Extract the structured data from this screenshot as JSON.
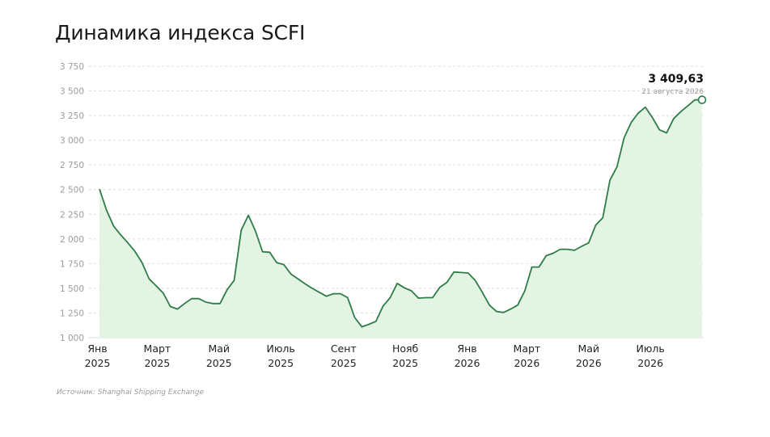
{
  "page": {
    "title": "Динамика индекса SCFI",
    "source": "Источник: Shanghai Shipping Exchange"
  },
  "chart_data": {
    "type": "area",
    "title": "Динамика индекса SCFI",
    "xlabel": "",
    "ylabel": "",
    "ylim": [
      1000,
      3750
    ],
    "yticks": [
      1000,
      1250,
      1500,
      1750,
      2000,
      2250,
      2500,
      2750,
      3000,
      3250,
      3500,
      3750
    ],
    "ytick_labels": [
      "1 000",
      "1 250",
      "1 500",
      "1 750",
      "2 000",
      "2 250",
      "2 500",
      "2 750",
      "3 000",
      "3 250",
      "3 500",
      "3 750"
    ],
    "xlim": [
      "2025-01-03",
      "2026-08-21"
    ],
    "xticks": [
      {
        "date": "2025-01-01",
        "line1": "Янв",
        "line2": "2025"
      },
      {
        "date": "2025-03-01",
        "line1": "Март",
        "line2": "2025"
      },
      {
        "date": "2025-05-01",
        "line1": "Май",
        "line2": "2025"
      },
      {
        "date": "2025-07-01",
        "line1": "Июль",
        "line2": "2025"
      },
      {
        "date": "2025-09-01",
        "line1": "Сент",
        "line2": "2025"
      },
      {
        "date": "2025-11-01",
        "line1": "Нояб",
        "line2": "2025"
      },
      {
        "date": "2026-01-01",
        "line1": "Янв",
        "line2": "2026"
      },
      {
        "date": "2026-03-01",
        "line1": "Март",
        "line2": "2026"
      },
      {
        "date": "2026-05-01",
        "line1": "Май",
        "line2": "2026"
      },
      {
        "date": "2026-07-01",
        "line1": "Июль",
        "line2": "2026"
      }
    ],
    "grid": true,
    "colors": {
      "line": "#2e7d46",
      "fill": "#e3f4e5",
      "grid": "#dcdcdc"
    },
    "series": [
      {
        "x": [
          "2025-01-03",
          "2025-01-10",
          "2025-01-17",
          "2025-01-24",
          "2025-01-31",
          "2025-02-07",
          "2025-02-14",
          "2025-02-21",
          "2025-02-28",
          "2025-03-07",
          "2025-03-14",
          "2025-03-21",
          "2025-03-28",
          "2025-04-04",
          "2025-04-11",
          "2025-04-18",
          "2025-04-25",
          "2025-05-02",
          "2025-05-09",
          "2025-05-16",
          "2025-05-23",
          "2025-05-30",
          "2025-06-06",
          "2025-06-13",
          "2025-06-20",
          "2025-06-27",
          "2025-07-04",
          "2025-07-11",
          "2025-07-18",
          "2025-07-25",
          "2025-08-01",
          "2025-08-08",
          "2025-08-15",
          "2025-08-22",
          "2025-08-29",
          "2025-09-05",
          "2025-09-12",
          "2025-09-19",
          "2025-09-26",
          "2025-10-03",
          "2025-10-10",
          "2025-10-17",
          "2025-10-24",
          "2025-10-31",
          "2025-11-07",
          "2025-11-14",
          "2025-11-21",
          "2025-11-28",
          "2025-12-05",
          "2025-12-12",
          "2025-12-19",
          "2025-12-26",
          "2026-01-02",
          "2026-01-09",
          "2026-01-16",
          "2026-01-23",
          "2026-01-30",
          "2026-02-06",
          "2026-02-13",
          "2026-02-20",
          "2026-02-27",
          "2026-03-06",
          "2026-03-13",
          "2026-03-20",
          "2026-03-27",
          "2026-04-03",
          "2026-04-10",
          "2026-04-17",
          "2026-04-24",
          "2026-05-01",
          "2026-05-08",
          "2026-05-15",
          "2026-05-22",
          "2026-05-29",
          "2026-06-05",
          "2026-06-12",
          "2026-06-19",
          "2026-06-26",
          "2026-07-03",
          "2026-07-10",
          "2026-07-17",
          "2026-07-24",
          "2026-07-31",
          "2026-08-07",
          "2026-08-14",
          "2026-08-21"
        ],
        "values": [
          2505,
          2290,
          2130,
          2040,
          1960,
          1875,
          1760,
          1595,
          1525,
          1450,
          1315,
          1290,
          1345,
          1395,
          1395,
          1360,
          1345,
          1345,
          1485,
          1580,
          2090,
          2240,
          2080,
          1870,
          1865,
          1760,
          1740,
          1645,
          1595,
          1545,
          1500,
          1460,
          1420,
          1445,
          1445,
          1405,
          1205,
          1110,
          1135,
          1165,
          1320,
          1405,
          1550,
          1505,
          1475,
          1400,
          1405,
          1405,
          1510,
          1560,
          1665,
          1660,
          1655,
          1580,
          1460,
          1330,
          1265,
          1255,
          1290,
          1330,
          1475,
          1715,
          1715,
          1830,
          1855,
          1895,
          1895,
          1885,
          1925,
          1960,
          2140,
          2215,
          2595,
          2730,
          3025,
          3180,
          3275,
          3335,
          3230,
          3105,
          3075,
          3220,
          3290,
          3350,
          3409.63,
          3409.63
        ]
      }
    ],
    "annotation": {
      "value": "3 409,63",
      "date": "21 августа 2026"
    }
  }
}
